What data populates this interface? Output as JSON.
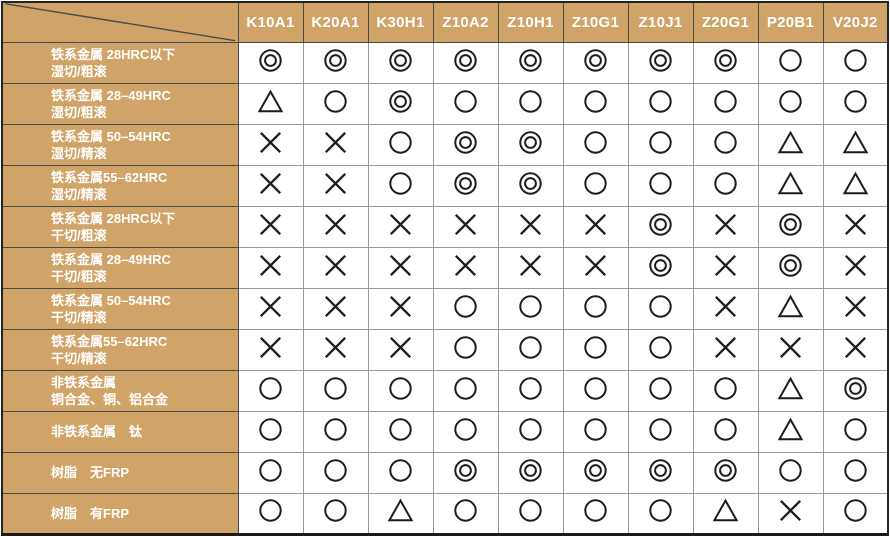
{
  "colors": {
    "header_bg": "#D0A468",
    "label_bg": "#D0A468",
    "header_text": "#FFFFFF",
    "label_text": "#FFFFFF",
    "cell_bg": "#FFFFFF",
    "symbol": "#1C1C1C",
    "grid_inner": "#999999",
    "grid_dark": "#4A4A4A",
    "frame": "#242424"
  },
  "chart_data": {
    "type": "table",
    "columns": [
      "K10A1",
      "K20A1",
      "K30H1",
      "Z10A2",
      "Z10H1",
      "Z10G1",
      "Z10J1",
      "Z20G1",
      "P20B1",
      "V20J2"
    ],
    "symbols": {
      "double_circle": "◎",
      "circle": "○",
      "triangle": "△",
      "cross": "×"
    },
    "rows": [
      {
        "label_lines": [
          "铁系金属 28HRC以下",
          "湿切/粗滚"
        ],
        "ratings": [
          "double_circle",
          "double_circle",
          "double_circle",
          "double_circle",
          "double_circle",
          "double_circle",
          "double_circle",
          "double_circle",
          "circle",
          "circle"
        ]
      },
      {
        "label_lines": [
          "铁系金属 28–49HRC",
          "湿切/粗滚"
        ],
        "ratings": [
          "triangle",
          "circle",
          "double_circle",
          "circle",
          "circle",
          "circle",
          "circle",
          "circle",
          "circle",
          "circle"
        ]
      },
      {
        "label_lines": [
          "铁系金属 50–54HRC",
          "湿切/精滚"
        ],
        "ratings": [
          "cross",
          "cross",
          "circle",
          "double_circle",
          "double_circle",
          "circle",
          "circle",
          "circle",
          "triangle",
          "triangle"
        ]
      },
      {
        "label_lines": [
          "铁系金属55–62HRC",
          "湿切/精滚"
        ],
        "ratings": [
          "cross",
          "cross",
          "circle",
          "double_circle",
          "double_circle",
          "circle",
          "circle",
          "circle",
          "triangle",
          "triangle"
        ]
      },
      {
        "label_lines": [
          "铁系金属 28HRC以下",
          "干切/粗滚"
        ],
        "ratings": [
          "cross",
          "cross",
          "cross",
          "cross",
          "cross",
          "cross",
          "double_circle",
          "cross",
          "double_circle",
          "cross"
        ]
      },
      {
        "label_lines": [
          "铁系金属 28–49HRC",
          "干切/粗滚"
        ],
        "ratings": [
          "cross",
          "cross",
          "cross",
          "cross",
          "cross",
          "cross",
          "double_circle",
          "cross",
          "double_circle",
          "cross"
        ]
      },
      {
        "label_lines": [
          "铁系金属 50–54HRC",
          "干切/精滚"
        ],
        "ratings": [
          "cross",
          "cross",
          "cross",
          "circle",
          "circle",
          "circle",
          "circle",
          "cross",
          "triangle",
          "cross"
        ]
      },
      {
        "label_lines": [
          "铁系金属55–62HRC",
          "干切/精滚"
        ],
        "ratings": [
          "cross",
          "cross",
          "cross",
          "circle",
          "circle",
          "circle",
          "circle",
          "cross",
          "cross",
          "cross"
        ]
      },
      {
        "label_lines": [
          "非铁系金属",
          "铜合金、铜、铝合金"
        ],
        "ratings": [
          "circle",
          "circle",
          "circle",
          "circle",
          "circle",
          "circle",
          "circle",
          "circle",
          "triangle",
          "double_circle"
        ]
      },
      {
        "label_lines": [
          "非铁系金属　钛"
        ],
        "ratings": [
          "circle",
          "circle",
          "circle",
          "circle",
          "circle",
          "circle",
          "circle",
          "circle",
          "triangle",
          "circle"
        ]
      },
      {
        "label_lines": [
          "树脂　无FRP"
        ],
        "ratings": [
          "circle",
          "circle",
          "circle",
          "double_circle",
          "double_circle",
          "double_circle",
          "double_circle",
          "double_circle",
          "circle",
          "circle"
        ]
      },
      {
        "label_lines": [
          "树脂　有FRP"
        ],
        "ratings": [
          "circle",
          "circle",
          "triangle",
          "circle",
          "circle",
          "circle",
          "circle",
          "triangle",
          "cross",
          "circle"
        ]
      }
    ]
  }
}
